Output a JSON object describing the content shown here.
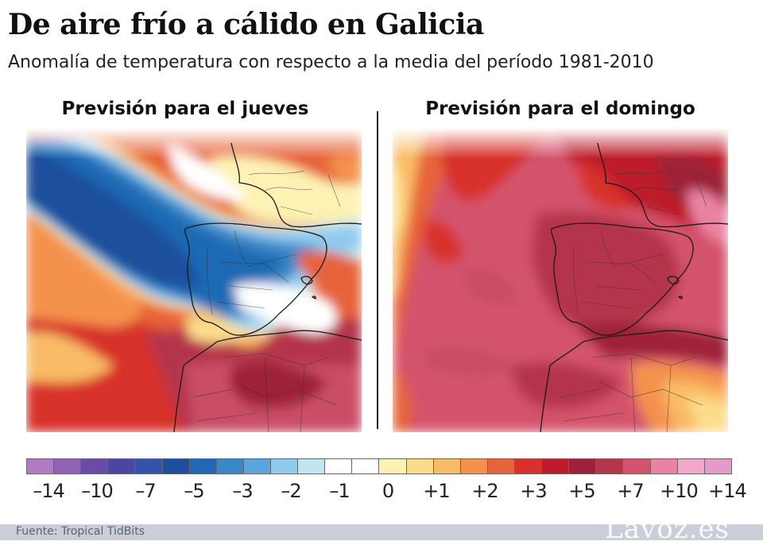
{
  "title": "De aire frío a cálido en Galicia",
  "subtitle": "Anomalía de temperatura con respecto a la media del período 1981-2010",
  "panels": {
    "left": {
      "title": "Previsión para el jueves"
    },
    "right": {
      "title": "Previsión para el domingo"
    }
  },
  "legend": {
    "colors": [
      "#b17bc0",
      "#8f62b4",
      "#6a4ca6",
      "#4b47a0",
      "#3453aa",
      "#1e4f9c",
      "#1f69b4",
      "#3b86c8",
      "#5ca4dd",
      "#8ecaef",
      "#c0e6f0",
      "#ffffff",
      "#ffffff",
      "#fdf2b3",
      "#fcdc8a",
      "#f9bb66",
      "#f4924d",
      "#e7633a",
      "#d8302a",
      "#bd1a2b",
      "#9d2138",
      "#b4354c",
      "#d4526c",
      "#ea83a3",
      "#f2a8c8",
      "#e59ac9"
    ],
    "labels": [
      "–14",
      "–10",
      "–7",
      "–5",
      "–3",
      "–2",
      "–1",
      "0",
      "+1",
      "+2",
      "+3",
      "+5",
      "+7",
      "+10",
      "+14"
    ]
  },
  "footer": {
    "source": "Fuente:  Tropical TidBits",
    "logo": "Lavoz.es"
  }
}
